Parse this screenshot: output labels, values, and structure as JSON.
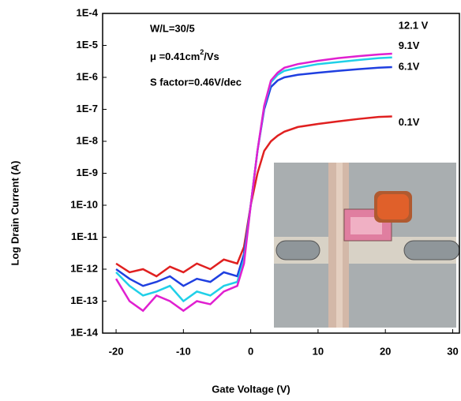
{
  "chart_data": {
    "type": "line",
    "x_label": "Gate Voltage (V)",
    "y_label": "Log Drain Current (A)",
    "annotations": [
      "W/L=30/5",
      "μ =0.41cm",
      "2",
      "/Vs",
      "S factor=0.46V/dec"
    ],
    "log_y": true,
    "xlim": [
      -22,
      31
    ],
    "xticks": [
      -20,
      -10,
      0,
      10,
      20,
      30
    ],
    "ylim": [
      1e-14,
      0.0001
    ],
    "yticks": [
      {
        "value": 1e-14,
        "label": "1E-14"
      },
      {
        "value": 1e-13,
        "label": "1E-13"
      },
      {
        "value": 1e-12,
        "label": "1E-12"
      },
      {
        "value": 1e-11,
        "label": "1E-11"
      },
      {
        "value": 1e-10,
        "label": "1E-10"
      },
      {
        "value": 1e-09,
        "label": "1E-9"
      },
      {
        "value": 1e-08,
        "label": "1E-8"
      },
      {
        "value": 1e-07,
        "label": "1E-7"
      },
      {
        "value": 1e-06,
        "label": "1E-6"
      },
      {
        "value": 1e-05,
        "label": "1E-5"
      },
      {
        "value": 0.0001,
        "label": "1E-4"
      }
    ],
    "x": [
      -20,
      -18,
      -16,
      -14,
      -12,
      -10,
      -8,
      -6,
      -4,
      -2,
      -1,
      0,
      1,
      2,
      3,
      4,
      5,
      7,
      10,
      13,
      16,
      19,
      21
    ],
    "series": [
      {
        "name": "0.1V",
        "color": "#e02020",
        "values": [
          1.5e-12,
          8e-13,
          1e-12,
          6e-13,
          1.2e-12,
          8e-13,
          1.5e-12,
          1e-12,
          2e-12,
          1.5e-12,
          5e-12,
          1e-10,
          1e-09,
          5e-09,
          1e-08,
          1.5e-08,
          2e-08,
          2.8e-08,
          3.5e-08,
          4.2e-08,
          5e-08,
          5.8e-08,
          6e-08
        ]
      },
      {
        "name": "6.1V",
        "color": "#1f3fe0",
        "values": [
          1e-12,
          5e-13,
          3e-13,
          4e-13,
          6e-13,
          3e-13,
          5e-13,
          4e-13,
          8e-13,
          6e-13,
          3e-12,
          1e-10,
          5e-09,
          1e-07,
          5e-07,
          8e-07,
          1e-06,
          1.2e-06,
          1.4e-06,
          1.6e-06,
          1.8e-06,
          2e-06,
          2.1e-06
        ]
      },
      {
        "name": "9.1V",
        "color": "#20d0e8",
        "values": [
          8e-13,
          3e-13,
          1.5e-13,
          2e-13,
          3e-13,
          1e-13,
          2e-13,
          1.5e-13,
          3e-13,
          4e-13,
          2e-12,
          1e-10,
          5e-09,
          1.2e-07,
          7e-07,
          1.2e-06,
          1.6e-06,
          2e-06,
          2.6e-06,
          3e-06,
          3.5e-06,
          4e-06,
          4.2e-06
        ]
      },
      {
        "name": "12.1 V",
        "color": "#e020d0",
        "values": [
          5e-13,
          1e-13,
          5e-14,
          1.5e-13,
          1e-13,
          5e-14,
          1e-13,
          8e-14,
          2e-13,
          3e-13,
          1.5e-12,
          1e-10,
          5e-09,
          1.3e-07,
          8e-07,
          1.4e-06,
          2e-06,
          2.6e-06,
          3.3e-06,
          4e-06,
          4.6e-06,
          5.2e-06,
          5.5e-06
        ]
      }
    ]
  }
}
